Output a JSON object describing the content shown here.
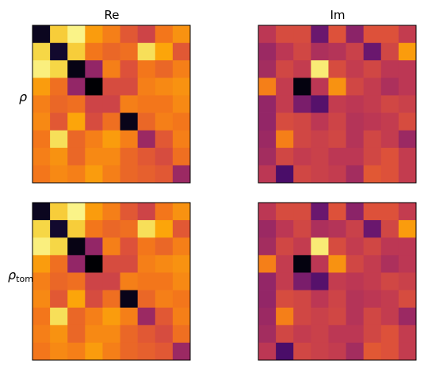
{
  "figure": {
    "column_titles": [
      "Re",
      "Im"
    ],
    "row_labels": [
      {
        "symbol": "ρ",
        "subscript": ""
      },
      {
        "symbol": "ρ",
        "subscript": "tomo"
      }
    ]
  },
  "chart_data": [
    {
      "type": "heatmap",
      "name": "rho-real",
      "row": "ρ",
      "column": "Re",
      "colormap": "inferno",
      "color_scale": [
        0,
        1
      ],
      "xticks": [],
      "yticks": [],
      "values": [
        [
          0.05,
          0.88,
          0.97,
          0.78,
          0.72,
          0.62,
          0.55,
          0.7,
          0.76
        ],
        [
          0.9,
          0.08,
          0.88,
          0.7,
          0.66,
          0.68,
          0.92,
          0.8,
          0.62
        ],
        [
          0.96,
          0.9,
          0.03,
          0.4,
          0.72,
          0.6,
          0.7,
          0.66,
          0.72
        ],
        [
          0.78,
          0.68,
          0.4,
          0.0,
          0.58,
          0.58,
          0.72,
          0.74,
          0.76
        ],
        [
          0.72,
          0.66,
          0.68,
          0.55,
          0.55,
          0.72,
          0.7,
          0.7,
          0.74
        ],
        [
          0.74,
          0.62,
          0.8,
          0.58,
          0.68,
          0.04,
          0.66,
          0.72,
          0.7
        ],
        [
          0.7,
          0.92,
          0.66,
          0.72,
          0.78,
          0.72,
          0.42,
          0.62,
          0.72
        ],
        [
          0.72,
          0.76,
          0.66,
          0.74,
          0.74,
          0.66,
          0.62,
          0.58,
          0.68
        ],
        [
          0.7,
          0.74,
          0.72,
          0.78,
          0.72,
          0.66,
          0.64,
          0.62,
          0.42
        ]
      ]
    },
    {
      "type": "heatmap",
      "name": "rho-imag",
      "row": "ρ",
      "column": "Im",
      "colormap": "inferno",
      "color_scale": [
        0,
        1
      ],
      "xticks": [],
      "yticks": [],
      "values": [
        [
          0.5,
          0.58,
          0.58,
          0.3,
          0.6,
          0.38,
          0.6,
          0.6,
          0.52
        ],
        [
          0.42,
          0.5,
          0.56,
          0.46,
          0.48,
          0.54,
          0.3,
          0.56,
          0.78
        ],
        [
          0.44,
          0.56,
          0.52,
          0.95,
          0.58,
          0.52,
          0.56,
          0.5,
          0.5
        ],
        [
          0.72,
          0.52,
          0.02,
          0.5,
          0.76,
          0.56,
          0.52,
          0.46,
          0.5
        ],
        [
          0.4,
          0.52,
          0.34,
          0.25,
          0.52,
          0.5,
          0.52,
          0.56,
          0.54
        ],
        [
          0.4,
          0.58,
          0.56,
          0.5,
          0.55,
          0.48,
          0.5,
          0.52,
          0.58
        ],
        [
          0.42,
          0.72,
          0.56,
          0.54,
          0.56,
          0.48,
          0.56,
          0.52,
          0.42
        ],
        [
          0.44,
          0.56,
          0.52,
          0.54,
          0.5,
          0.5,
          0.56,
          0.6,
          0.52
        ],
        [
          0.5,
          0.22,
          0.56,
          0.54,
          0.52,
          0.44,
          0.62,
          0.6,
          0.52
        ]
      ]
    },
    {
      "type": "heatmap",
      "name": "rho-tomo-real",
      "row": "ρ_tomo",
      "column": "Re",
      "colormap": "inferno",
      "color_scale": [
        0,
        1
      ],
      "xticks": [],
      "yticks": [],
      "values": [
        [
          0.05,
          0.88,
          0.97,
          0.78,
          0.72,
          0.62,
          0.55,
          0.7,
          0.76
        ],
        [
          0.9,
          0.08,
          0.88,
          0.7,
          0.66,
          0.68,
          0.92,
          0.8,
          0.62
        ],
        [
          0.96,
          0.9,
          0.03,
          0.4,
          0.72,
          0.6,
          0.7,
          0.66,
          0.72
        ],
        [
          0.78,
          0.68,
          0.4,
          0.0,
          0.58,
          0.58,
          0.72,
          0.74,
          0.76
        ],
        [
          0.72,
          0.66,
          0.68,
          0.55,
          0.55,
          0.72,
          0.7,
          0.7,
          0.74
        ],
        [
          0.74,
          0.62,
          0.8,
          0.58,
          0.68,
          0.04,
          0.66,
          0.72,
          0.7
        ],
        [
          0.7,
          0.92,
          0.66,
          0.72,
          0.78,
          0.72,
          0.42,
          0.62,
          0.72
        ],
        [
          0.72,
          0.76,
          0.66,
          0.74,
          0.74,
          0.66,
          0.62,
          0.58,
          0.68
        ],
        [
          0.7,
          0.74,
          0.72,
          0.78,
          0.72,
          0.66,
          0.64,
          0.62,
          0.42
        ]
      ]
    },
    {
      "type": "heatmap",
      "name": "rho-tomo-imag",
      "row": "ρ_tomo",
      "column": "Im",
      "colormap": "inferno",
      "color_scale": [
        0,
        1
      ],
      "xticks": [],
      "yticks": [],
      "values": [
        [
          0.5,
          0.58,
          0.58,
          0.3,
          0.6,
          0.38,
          0.6,
          0.6,
          0.52
        ],
        [
          0.42,
          0.5,
          0.56,
          0.46,
          0.48,
          0.54,
          0.3,
          0.56,
          0.78
        ],
        [
          0.44,
          0.56,
          0.52,
          0.95,
          0.58,
          0.52,
          0.56,
          0.5,
          0.5
        ],
        [
          0.72,
          0.52,
          0.02,
          0.5,
          0.76,
          0.56,
          0.52,
          0.46,
          0.5
        ],
        [
          0.4,
          0.52,
          0.34,
          0.25,
          0.52,
          0.5,
          0.52,
          0.56,
          0.54
        ],
        [
          0.4,
          0.58,
          0.56,
          0.5,
          0.55,
          0.48,
          0.5,
          0.52,
          0.58
        ],
        [
          0.42,
          0.72,
          0.56,
          0.54,
          0.56,
          0.48,
          0.56,
          0.52,
          0.42
        ],
        [
          0.44,
          0.56,
          0.52,
          0.54,
          0.5,
          0.5,
          0.56,
          0.6,
          0.52
        ],
        [
          0.5,
          0.22,
          0.56,
          0.54,
          0.52,
          0.44,
          0.62,
          0.6,
          0.52
        ]
      ]
    }
  ]
}
